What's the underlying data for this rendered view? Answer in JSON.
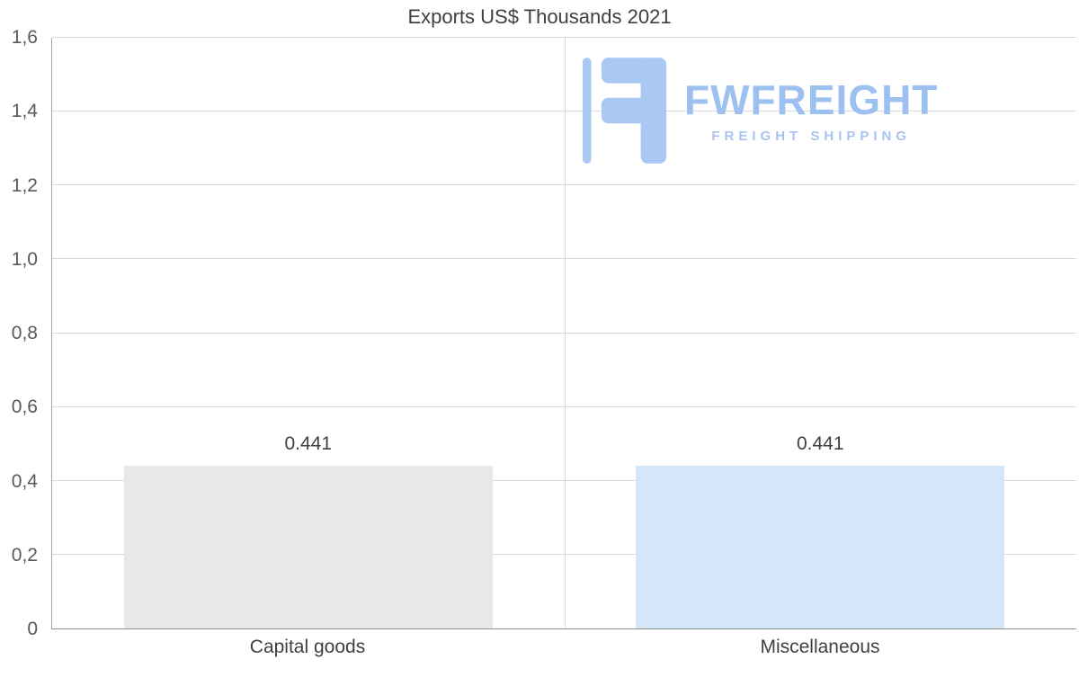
{
  "title": "Exports US$ Thousands 2021",
  "watermark": {
    "brand": "FWFREIGHT",
    "tagline": "FREIGHT SHIPPING",
    "color": "#9cc0ef"
  },
  "chart_data": {
    "type": "bar",
    "title": "Exports US$ Thousands 2021",
    "categories": [
      "Capital goods",
      "Miscellaneous"
    ],
    "values": [
      0.441,
      0.441
    ],
    "value_labels": [
      "0.441",
      "0.441"
    ],
    "bar_colors": [
      "#e8e8e8",
      "#d4e7f9"
    ],
    "ylim": [
      0,
      1.6
    ],
    "yticks": [
      0,
      0.2,
      0.4,
      0.6,
      0.8,
      1.0,
      1.2,
      1.4,
      1.6
    ],
    "ytick_labels": [
      "0",
      "0,2",
      "0,4",
      "0,6",
      "0,8",
      "1,0",
      "1,2",
      "1,4",
      "1,6"
    ],
    "grid": true,
    "legend": "none",
    "xlabel": "",
    "ylabel": ""
  }
}
